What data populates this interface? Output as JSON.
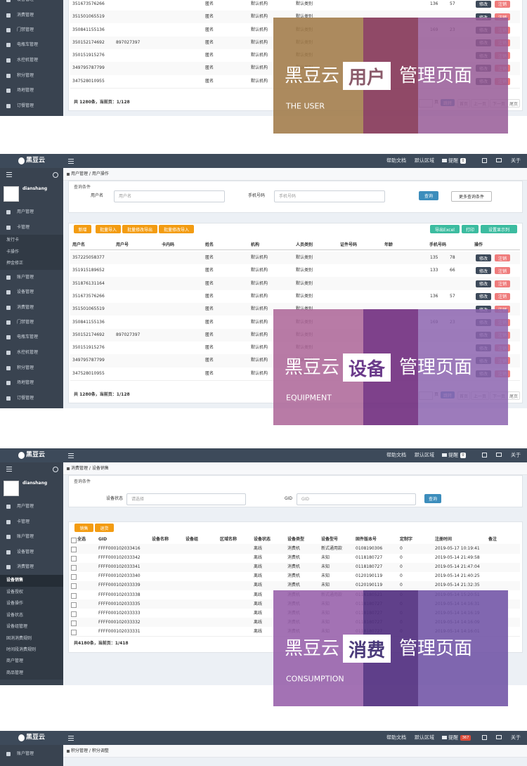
{
  "header": {
    "brand": "黑豆云",
    "nav": [
      "帮助文档",
      "默认区域",
      "提醒",
      "关于"
    ]
  },
  "user": "dianshang",
  "pages": [
    {
      "breadcrumb": "用户管理 / 用户操作",
      "sidebar": [
        "用户管理",
        "卡管理",
        "发行卡",
        "卡操作",
        "押金修正",
        "账户管理",
        "设备管理",
        "消费管理",
        "门禁管理",
        "电瓶车管理",
        "水控机管理",
        "积分管理",
        "场地管理",
        "订餐管理"
      ],
      "badge": "0",
      "search_title": "查询条件",
      "filters": [
        {
          "label": "用户名",
          "placeholder": "用户名"
        },
        {
          "label": "手机号码",
          "placeholder": "手机号码"
        }
      ],
      "search_buttons": [
        "查询",
        "更多查询条件"
      ],
      "toolbar": [
        "新增",
        "批量导入",
        "批量修改导出",
        "批量修改导入"
      ],
      "toolbar_right": [
        "导出Excel",
        "打印",
        "设置显示列"
      ],
      "columns": [
        "用户名",
        "用户号",
        "卡内码",
        "姓名",
        "机构",
        "人员类别",
        "证件号码",
        "年龄",
        "手机号码",
        "操作"
      ],
      "rows": [
        [
          "357225058377",
          null,
          null,
          "匿名",
          "默认机构",
          "默认类别",
          null,
          null,
          "135",
          "78"
        ],
        [
          "351915189652",
          null,
          null,
          "匿名",
          "默认机构",
          "默认类别",
          null,
          null,
          "133",
          "66"
        ],
        [
          "351876131164",
          null,
          null,
          "匿名",
          "默认机构",
          "默认类别",
          null,
          null,
          null,
          null
        ],
        [
          "351673576266",
          null,
          null,
          "匿名",
          "默认机构",
          "默认类别",
          null,
          null,
          "136",
          "57"
        ],
        [
          "351501065519",
          null,
          null,
          "匿名",
          "默认机构",
          "默认类别",
          null,
          null,
          null,
          null
        ],
        [
          "350841155136",
          null,
          null,
          "匿名",
          "默认机构",
          "默认类别",
          null,
          null,
          "169",
          "23"
        ],
        [
          "350152174692",
          "897027397",
          null,
          "匿名",
          "默认机构",
          "默认类别",
          null,
          null,
          null,
          null
        ],
        [
          "350151915276",
          null,
          null,
          "匿名",
          "默认机构",
          "默认类别",
          null,
          null,
          null,
          null
        ],
        [
          "349795787799",
          null,
          null,
          "匿名",
          "默认机构",
          "默认类别",
          null,
          null,
          null,
          null
        ],
        [
          "347528010955",
          null,
          null,
          "匿名",
          "默认机构",
          "默认类别",
          null,
          null,
          null,
          null
        ]
      ],
      "actions": [
        "修改",
        "注销"
      ],
      "footer": "共 1280条，当前页：1/128",
      "pager": [
        "页",
        "跳转",
        "首页",
        "上一页",
        "下一页",
        "尾页"
      ]
    },
    {
      "breadcrumb": "消费管理 / 设备销售",
      "sidebar": [
        "用户管理",
        "卡管理",
        "账户管理",
        "设备管理",
        "消费管理",
        "设备销售",
        "设备授权",
        "设备操作",
        "设备状态",
        "设备组管理",
        "固消消费规则",
        "时间段消费规则",
        "商户管理",
        "商品管理"
      ],
      "badge": "0",
      "search_title": "查询条件",
      "filters": [
        {
          "label": "设备状态",
          "placeholder": "请选择"
        },
        {
          "label": "GID",
          "placeholder": "GID"
        }
      ],
      "search_buttons": [
        "查询"
      ],
      "toolbar": [
        "销售",
        "退货"
      ],
      "columns": [
        "全选",
        "GID",
        "设备名称",
        "设备组",
        "区域名称",
        "设备状态",
        "设备类型",
        "设备型号",
        "固件版本号",
        "定制字",
        "注册时间",
        "备注"
      ],
      "rows": [
        [
          null,
          "FFFF000102033416",
          null,
          null,
          null,
          "离线",
          "消费机",
          "新式通用款",
          "0108190306",
          "0",
          "2019-05-17 10:19:41",
          null
        ],
        [
          null,
          "FFFF000102033342",
          null,
          null,
          null,
          "离线",
          "消费机",
          "未知",
          "0118180727",
          "0",
          "2019-05-14 21:49:58",
          null
        ],
        [
          null,
          "FFFF000102033341",
          null,
          null,
          null,
          "离线",
          "消费机",
          "未知",
          "0118180727",
          "0",
          "2019-05-14 21:47:04",
          null
        ],
        [
          null,
          "FFFF000102033340",
          null,
          null,
          null,
          "离线",
          "消费机",
          "未知",
          "0120190119",
          "0",
          "2019-05-14 21:40:25",
          null
        ],
        [
          null,
          "FFFF000102033339",
          null,
          null,
          null,
          "离线",
          "消费机",
          "未知",
          "0120190119",
          "0",
          "2019-05-14 21:32:35",
          null
        ],
        [
          null,
          "FFFF000102033338",
          null,
          null,
          null,
          "离线",
          "消费机",
          "新式通用款",
          "0116180521",
          "0",
          "2019-05-14 15:20:51",
          null
        ],
        [
          null,
          "FFFF000102033335",
          null,
          null,
          null,
          "离线",
          "消费机",
          "未知",
          "0118180727",
          "0",
          "2019-05-14 14:16:31",
          null
        ],
        [
          null,
          "FFFF000102033333",
          null,
          null,
          null,
          "离线",
          "消费机",
          "未知",
          "0118180727",
          "0",
          "2019-05-14 14:16:19",
          null
        ],
        [
          null,
          "FFFF000102033332",
          null,
          null,
          null,
          "离线",
          "消费机",
          "未知",
          "0118180727",
          "0",
          "2019-05-14 14:16:09",
          null
        ],
        [
          null,
          "FFFF000102033331",
          null,
          null,
          null,
          "离线",
          "消费机",
          "未知",
          "0118180727",
          "0",
          "2019-05-14 14:16:01",
          null
        ]
      ],
      "footer": "共4180条，当前页：1/418"
    },
    {
      "breadcrumb": "积分管理 / 积分调整",
      "sidebar": [
        "账户管理"
      ],
      "badge": "367"
    }
  ],
  "overlay_suffix": "管理页面",
  "overlays": [
    {
      "word": "用户",
      "english": "THE USER"
    },
    {
      "word": "设备",
      "english": "EQUIPMENT"
    },
    {
      "word": "消费",
      "english": "CONSUMPTION"
    }
  ]
}
